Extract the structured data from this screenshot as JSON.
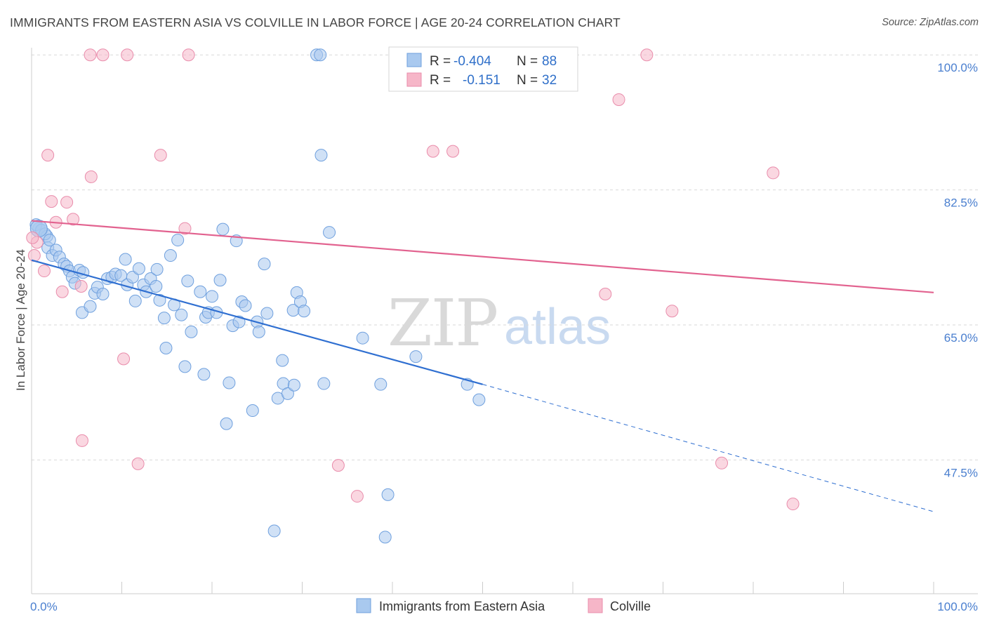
{
  "header": {
    "title": "IMMIGRANTS FROM EASTERN ASIA VS COLVILLE IN LABOR FORCE | AGE 20-24 CORRELATION CHART",
    "source": "Source: ZipAtlas.com"
  },
  "watermark": {
    "part1": "ZIP",
    "part2": "atlas"
  },
  "legend": {
    "rows": [
      {
        "r_label": "R =",
        "r_value": "-0.404",
        "n_label": "N =",
        "n_value": "88",
        "color": "#a9c9ef"
      },
      {
        "r_label": "R =",
        "r_value": "-0.151",
        "n_label": "N =",
        "n_value": "32",
        "color": "#f6b6c8"
      }
    ]
  },
  "chart_data": {
    "type": "scatter",
    "title": "IMMIGRANTS FROM EASTERN ASIA VS COLVILLE IN LABOR FORCE | AGE 20-24 CORRELATION CHART",
    "xlabel": "",
    "ylabel": "In Labor Force | Age 20-24",
    "xlim": [
      0,
      100
    ],
    "ylim": [
      30,
      102
    ],
    "x_tick_labels": [
      "0.0%",
      "100.0%"
    ],
    "y_ticks": [
      47.5,
      65.0,
      82.5,
      100.0
    ],
    "y_tick_labels": [
      "47.5%",
      "65.0%",
      "82.5%",
      "100.0%"
    ],
    "grid": true,
    "legend_position": "top-center",
    "series": [
      {
        "name": "Immigrants from Eastern Asia",
        "color": "#a9c9ef",
        "stroke": "#6fa0de",
        "trend_color": "#2f6fd1",
        "trend": {
          "x0": 0,
          "y0": 73.4,
          "x1": 50,
          "y1": 57.3,
          "dash_x1": 100,
          "dash_y1": 40.8
        },
        "points": [
          [
            0.8,
            77.5
          ],
          [
            0.5,
            78.0
          ],
          [
            1.1,
            77.3
          ],
          [
            1.7,
            76.5
          ],
          [
            1.8,
            75.0
          ],
          [
            2.3,
            74.0
          ],
          [
            2.7,
            74.7
          ],
          [
            3.1,
            73.8
          ],
          [
            3.6,
            72.9
          ],
          [
            3.9,
            72.6
          ],
          [
            4.2,
            72.0
          ],
          [
            4.5,
            71.2
          ],
          [
            4.8,
            70.4
          ],
          [
            5.3,
            72.1
          ],
          [
            5.7,
            71.8
          ],
          [
            7.0,
            69.1
          ],
          [
            7.3,
            69.9
          ],
          [
            7.9,
            69.0
          ],
          [
            5.6,
            66.6
          ],
          [
            6.5,
            67.4
          ],
          [
            8.4,
            71.0
          ],
          [
            8.9,
            71.2
          ],
          [
            9.3,
            71.6
          ],
          [
            9.9,
            71.4
          ],
          [
            10.4,
            73.5
          ],
          [
            10.6,
            70.2
          ],
          [
            11.2,
            71.2
          ],
          [
            11.5,
            68.1
          ],
          [
            11.9,
            72.3
          ],
          [
            12.4,
            70.2
          ],
          [
            12.7,
            69.3
          ],
          [
            13.2,
            71.0
          ],
          [
            13.8,
            70.0
          ],
          [
            13.9,
            72.2
          ],
          [
            14.2,
            68.2
          ],
          [
            14.7,
            65.9
          ],
          [
            14.9,
            62.0
          ],
          [
            15.4,
            74.0
          ],
          [
            15.8,
            67.6
          ],
          [
            16.2,
            76.0
          ],
          [
            16.6,
            66.3
          ],
          [
            17.0,
            59.6
          ],
          [
            17.3,
            70.7
          ],
          [
            17.7,
            64.1
          ],
          [
            18.7,
            69.3
          ],
          [
            19.1,
            58.6
          ],
          [
            19.3,
            66.0
          ],
          [
            19.6,
            66.6
          ],
          [
            20.0,
            68.7
          ],
          [
            20.5,
            66.6
          ],
          [
            20.9,
            70.8
          ],
          [
            21.2,
            77.4
          ],
          [
            21.6,
            52.2
          ],
          [
            21.9,
            57.5
          ],
          [
            22.3,
            64.9
          ],
          [
            22.7,
            75.9
          ],
          [
            23.0,
            65.4
          ],
          [
            23.3,
            68.0
          ],
          [
            23.7,
            67.5
          ],
          [
            24.5,
            53.9
          ],
          [
            25.0,
            65.4
          ],
          [
            25.2,
            64.1
          ],
          [
            25.8,
            72.9
          ],
          [
            26.1,
            66.5
          ],
          [
            26.9,
            38.3
          ],
          [
            27.3,
            55.5
          ],
          [
            27.8,
            60.4
          ],
          [
            27.9,
            57.4
          ],
          [
            28.4,
            56.1
          ],
          [
            29.0,
            66.9
          ],
          [
            29.1,
            57.2
          ],
          [
            29.4,
            69.2
          ],
          [
            29.8,
            68.0
          ],
          [
            30.2,
            66.8
          ],
          [
            31.6,
            100.0
          ],
          [
            32.0,
            100.0
          ],
          [
            32.1,
            87.0
          ],
          [
            32.4,
            57.4
          ],
          [
            33.0,
            77.0
          ],
          [
            36.7,
            63.3
          ],
          [
            38.7,
            57.3
          ],
          [
            39.2,
            37.5
          ],
          [
            39.5,
            43.0
          ],
          [
            42.6,
            60.9
          ],
          [
            48.3,
            57.3
          ],
          [
            49.6,
            55.3
          ],
          [
            1.5,
            76.8
          ],
          [
            2.0,
            76.0
          ]
        ]
      },
      {
        "name": "Colville",
        "color": "#f6b6c8",
        "stroke": "#e98cab",
        "trend_color": "#e2628f",
        "trend": {
          "x0": 0,
          "y0": 78.5,
          "x1": 100,
          "y1": 69.2
        },
        "points": [
          [
            0.3,
            74.0
          ],
          [
            0.6,
            75.7
          ],
          [
            1.4,
            72.0
          ],
          [
            1.8,
            87.0
          ],
          [
            2.2,
            81.0
          ],
          [
            2.7,
            78.3
          ],
          [
            3.4,
            69.3
          ],
          [
            3.9,
            80.9
          ],
          [
            4.6,
            78.7
          ],
          [
            5.5,
            70.0
          ],
          [
            5.6,
            50.0
          ],
          [
            6.6,
            84.2
          ],
          [
            6.5,
            100.0
          ],
          [
            7.9,
            100.0
          ],
          [
            10.2,
            60.6
          ],
          [
            10.6,
            100.0
          ],
          [
            11.8,
            47.0
          ],
          [
            14.3,
            87.0
          ],
          [
            17.0,
            77.5
          ],
          [
            17.4,
            100.0
          ],
          [
            34.0,
            46.8
          ],
          [
            36.1,
            42.8
          ],
          [
            44.5,
            87.5
          ],
          [
            46.7,
            87.5
          ],
          [
            63.6,
            69.0
          ],
          [
            65.1,
            94.2
          ],
          [
            68.2,
            100.0
          ],
          [
            71.0,
            66.8
          ],
          [
            76.5,
            47.1
          ],
          [
            82.2,
            84.7
          ],
          [
            84.4,
            41.8
          ],
          [
            0.1,
            76.3
          ]
        ]
      }
    ]
  },
  "bottom_legend": [
    {
      "label": "Immigrants from Eastern Asia",
      "color": "#a9c9ef"
    },
    {
      "label": "Colville",
      "color": "#f6b6c8"
    }
  ]
}
